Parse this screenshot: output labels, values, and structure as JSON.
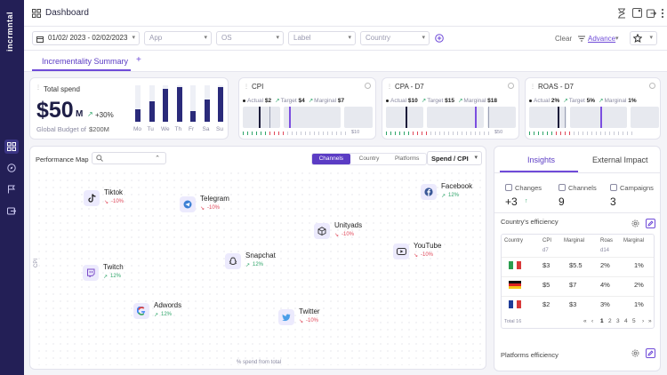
{
  "sidebar": {
    "brand": "incrmntal",
    "items": [
      {
        "icon": "dashboard-grid-icon",
        "active": true
      },
      {
        "icon": "compass-icon",
        "active": false
      },
      {
        "icon": "flag-icon",
        "active": false
      },
      {
        "icon": "export-icon",
        "active": false
      }
    ]
  },
  "header": {
    "title": "Dashboard",
    "icons": [
      "hourglass-icon",
      "note-icon",
      "export-icon",
      "more-vertical-icon"
    ]
  },
  "filters": {
    "date_range": "01/02/ 2023 - 02/02/2023",
    "app_placeholder": "App",
    "os_placeholder": "OS",
    "label_placeholder": "Label",
    "country_placeholder": "Country",
    "clear": "Clear",
    "advance": "Advance"
  },
  "tabs": {
    "active": "Incrementality Summary",
    "add": "+"
  },
  "total_spend": {
    "title": "Total spend",
    "value": "$50",
    "unit": "M",
    "change": "+30%",
    "budget_label": "Global Budget of",
    "budget_value": "$200M",
    "days": [
      "Mo",
      "Tu",
      "We",
      "Th",
      "Fr",
      "Sa",
      "Su"
    ],
    "bar_levels": [
      0.35,
      0.55,
      0.9,
      0.95,
      0.3,
      0.6,
      0.95
    ],
    "bar_color": "#2a2a7a"
  },
  "metrics": [
    {
      "title": "CPI",
      "actual_label": "Actual",
      "actual": "$2",
      "target_label": "Target",
      "target": "$4",
      "marginal_label": "Marginal",
      "marginal": "$7",
      "axis_end": "$10"
    },
    {
      "title": "CPA - D7",
      "actual_label": "Actual",
      "actual": "$10",
      "target_label": "Target",
      "target": "$15",
      "marginal_label": "Marginal",
      "marginal": "$18",
      "axis_end": "$50"
    },
    {
      "title": "ROAS - D7",
      "actual_label": "Actual",
      "actual": "2%",
      "target_label": "Target",
      "target": "5%",
      "marginal_label": "Marginal",
      "marginal": "1%",
      "axis_end": ""
    }
  ],
  "performance_map": {
    "title": "Performance Map",
    "toggles": [
      "Channels",
      "Country",
      "Platforms"
    ],
    "active_toggle": "Channels",
    "metric_select": "Spend / CPI",
    "x_axis_label": "% spend from total",
    "y_axis_label": "CPI",
    "channels": [
      {
        "name": "Tiktok",
        "change": "-10%",
        "trend": "down",
        "icon": "tiktok-icon"
      },
      {
        "name": "Telegram",
        "change": "-10%",
        "trend": "down",
        "icon": "telegram-icon"
      },
      {
        "name": "Facebook",
        "change": "12%",
        "trend": "up",
        "icon": "facebook-icon"
      },
      {
        "name": "Unityads",
        "change": "-10%",
        "trend": "down",
        "icon": "unity-icon"
      },
      {
        "name": "YouTube",
        "change": "-10%",
        "trend": "down",
        "icon": "youtube-icon"
      },
      {
        "name": "Snapchat",
        "change": "12%",
        "trend": "up",
        "icon": "snapchat-icon"
      },
      {
        "name": "Twitch",
        "change": "12%",
        "trend": "up",
        "icon": "twitch-icon"
      },
      {
        "name": "Adwords",
        "change": "12%",
        "trend": "up",
        "icon": "google-icon"
      },
      {
        "name": "Twitter",
        "change": "-10%",
        "trend": "down",
        "icon": "twitter-icon"
      }
    ]
  },
  "insights": {
    "tab_active": "Insights",
    "tab_other": "External Impact",
    "stats": [
      {
        "label": "Changes",
        "value": "+3",
        "icon": "changes-icon"
      },
      {
        "label": "Channels",
        "value": "9",
        "icon": "channels-icon"
      },
      {
        "label": "Campaigns",
        "value": "3",
        "icon": "campaigns-icon"
      }
    ],
    "country_efficiency": {
      "title": "Country's efficiency",
      "headers": [
        "Country",
        "CPI",
        "Marginal",
        "Roas",
        "Marginal"
      ],
      "subheaders": [
        "d7",
        "d14"
      ],
      "rows": [
        {
          "country": "Italy",
          "flag": [
            "#2a9d4f",
            "#ffffff",
            "#d83a3a"
          ],
          "cpi": "$3",
          "cpi_marginal": "$5.5",
          "roas": "2%",
          "roas_marginal": "1%"
        },
        {
          "country": "Germany",
          "flag": [
            "#111111",
            "#dd2222",
            "#f5c518"
          ],
          "cpi": "$5",
          "cpi_marginal": "$7",
          "roas": "4%",
          "roas_marginal": "2%"
        },
        {
          "country": "France",
          "flag": [
            "#1f3c99",
            "#ffffff",
            "#d83a3a"
          ],
          "cpi": "$2",
          "cpi_marginal": "$3",
          "roas": "3%",
          "roas_marginal": "1%"
        }
      ],
      "total": "Total 16",
      "pages": [
        "1",
        "2",
        "3",
        "4",
        "5"
      ],
      "active_page": "1"
    },
    "platforms_efficiency": {
      "title": "Platforms efficiency"
    }
  }
}
